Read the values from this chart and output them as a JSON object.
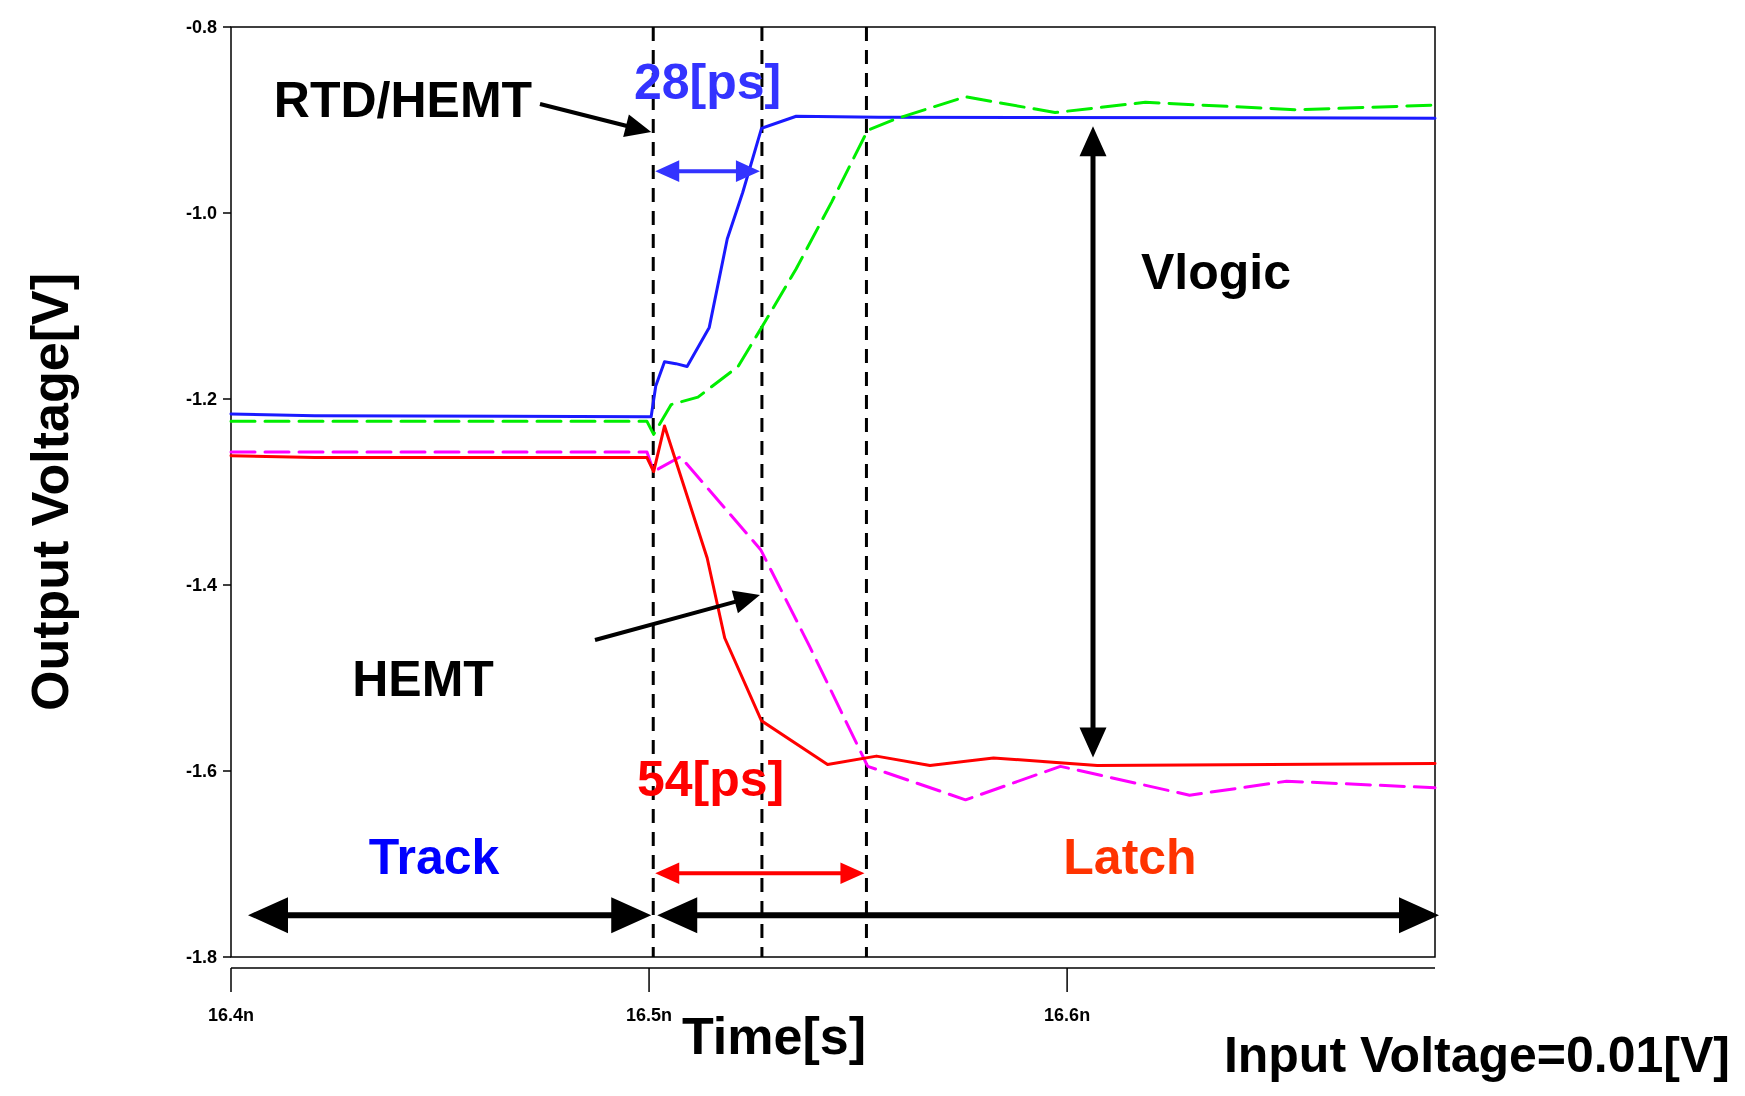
{
  "chart_data": {
    "type": "line",
    "xlabel": "Time[s]",
    "ylabel": "Output Voltage[V]",
    "annotations": [
      {
        "text": "RTD/HEMT",
        "x": 16.501,
        "y": -0.913
      },
      "HEMT",
      "28[ps]",
      "54[ps]",
      "Track",
      "Latch",
      "Vlogic",
      "Input Voltage=0.01[V]"
    ],
    "xlim": [
      16.4,
      16.688
    ],
    "ylim": [
      -1.8,
      -0.8
    ],
    "xticks": [
      {
        "value": 16.4,
        "label": "16.4n"
      },
      {
        "value": 16.5,
        "label": "16.5n"
      },
      {
        "value": 16.6,
        "label": "16.6n"
      }
    ],
    "yticks": [
      -1.8,
      -1.6,
      -1.4,
      -1.2,
      {
        "value": -1.0,
        "label": "-1.0"
      },
      -0.8
    ],
    "ref_lines": [
      {
        "axis": "x",
        "value": 16.501,
        "color": "#000000",
        "line_style": "dashed"
      },
      {
        "axis": "x",
        "value": 16.527,
        "color": "#000000",
        "line_style": "dashed"
      },
      {
        "axis": "x",
        "value": 16.552,
        "color": "#000000",
        "line_style": "dashed"
      }
    ],
    "series": [
      {
        "color": "#1a1aff",
        "line_style": "solid",
        "x": [
          16.4,
          16.42,
          16.4995,
          16.5005,
          16.5016,
          16.5037,
          16.5064,
          16.5091,
          16.5144,
          16.5187,
          16.5224,
          16.5269,
          16.5352,
          16.5549,
          16.688
        ],
        "values": [
          -1.216,
          -1.218,
          -1.219,
          -1.219,
          -1.186,
          -1.16,
          -1.162,
          -1.165,
          -1.123,
          -1.028,
          -0.978,
          -0.909,
          -0.896,
          -0.897,
          -0.898
        ]
      },
      {
        "color": "#00ee00",
        "line_style": "dashed",
        "x": [
          16.4,
          16.4995,
          16.5011,
          16.5053,
          16.5117,
          16.5213,
          16.5272,
          16.5352,
          16.5437,
          16.5523,
          16.5589,
          16.5757,
          16.5971,
          16.6187,
          16.6547,
          16.688
        ],
        "values": [
          -1.224,
          -1.224,
          -1.238,
          -1.206,
          -1.198,
          -1.165,
          -1.121,
          -1.06,
          -0.988,
          -0.911,
          -0.899,
          -0.875,
          -0.892,
          -0.881,
          -0.889,
          -0.884
        ]
      },
      {
        "color": "#ff00ff",
        "line_style": "dashed",
        "x": [
          16.4,
          16.4995,
          16.5011,
          16.5075,
          16.5267,
          16.5384,
          16.5523,
          16.5757,
          16.5984,
          16.6293,
          16.6525,
          16.688
        ],
        "values": [
          -1.257,
          -1.257,
          -1.278,
          -1.262,
          -1.362,
          -1.466,
          -1.595,
          -1.631,
          -1.595,
          -1.626,
          -1.611,
          -1.618
        ]
      },
      {
        "color": "#ff0000",
        "line_style": "solid",
        "x": [
          16.4,
          16.42,
          16.4995,
          16.5011,
          16.5037,
          16.5139,
          16.5181,
          16.5269,
          16.5427,
          16.5544,
          16.5672,
          16.5824,
          16.6072,
          16.688
        ],
        "values": [
          -1.261,
          -1.263,
          -1.263,
          -1.278,
          -1.229,
          -1.371,
          -1.457,
          -1.546,
          -1.593,
          -1.584,
          -1.594,
          -1.586,
          -1.594,
          -1.592
        ]
      }
    ]
  }
}
